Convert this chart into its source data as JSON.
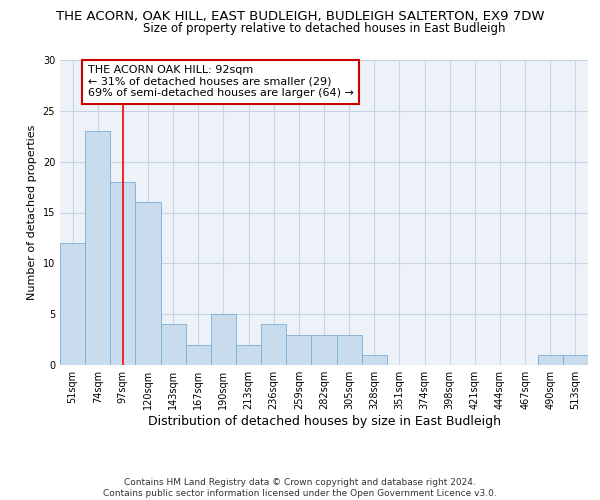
{
  "title1": "THE ACORN, OAK HILL, EAST BUDLEIGH, BUDLEIGH SALTERTON, EX9 7DW",
  "title2": "Size of property relative to detached houses in East Budleigh",
  "xlabel": "Distribution of detached houses by size in East Budleigh",
  "ylabel": "Number of detached properties",
  "categories": [
    "51sqm",
    "74sqm",
    "97sqm",
    "120sqm",
    "143sqm",
    "167sqm",
    "190sqm",
    "213sqm",
    "236sqm",
    "259sqm",
    "282sqm",
    "305sqm",
    "328sqm",
    "351sqm",
    "374sqm",
    "398sqm",
    "421sqm",
    "444sqm",
    "467sqm",
    "490sqm",
    "513sqm"
  ],
  "values": [
    12,
    23,
    18,
    16,
    4,
    2,
    5,
    2,
    4,
    3,
    3,
    3,
    1,
    0,
    0,
    0,
    0,
    0,
    0,
    1,
    1
  ],
  "bar_color": "#c9dcee",
  "bar_edge_color": "#7aadd4",
  "grid_color": "#c8d4e4",
  "bg_color": "#edf2f9",
  "red_line_x": 2.0,
  "annotation_line1": "THE ACORN OAK HILL: 92sqm",
  "annotation_line2": "← 31% of detached houses are smaller (29)",
  "annotation_line3": "69% of semi-detached houses are larger (64) →",
  "annotation_box_color": "#ffffff",
  "annotation_border_color": "#cc0000",
  "footer": "Contains HM Land Registry data © Crown copyright and database right 2024.\nContains public sector information licensed under the Open Government Licence v3.0.",
  "ylim": [
    0,
    30
  ],
  "yticks": [
    0,
    5,
    10,
    15,
    20,
    25,
    30
  ],
  "title1_fontsize": 9.5,
  "title2_fontsize": 8.5,
  "xlabel_fontsize": 9,
  "ylabel_fontsize": 8,
  "tick_fontsize": 7,
  "footer_fontsize": 6.5,
  "annotation_fontsize": 8
}
